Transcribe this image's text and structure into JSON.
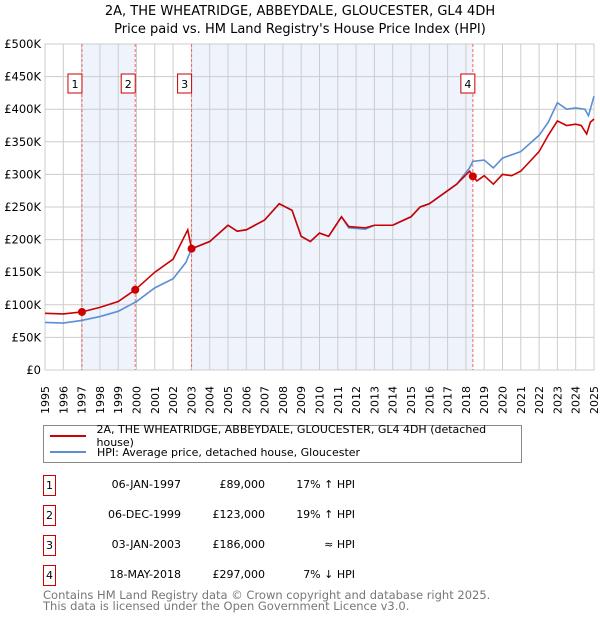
{
  "title_line1": "2A, THE WHEATRIDGE, ABBEYDALE, GLOUCESTER, GL4 4DH",
  "title_line2": "Price paid vs. HM Land Registry's House Price Index (HPI)",
  "legend": {
    "property": "2A, THE WHEATRIDGE, ABBEYDALE, GLOUCESTER, GL4 4DH (detached house)",
    "hpi": "HPI: Average price, detached house, Gloucester"
  },
  "colors": {
    "property": "#cc0000",
    "hpi": "#5b8fd4",
    "shade": "#eef3fc"
  },
  "sales": [
    {
      "n": "1",
      "date": "06-JAN-1997",
      "price": "£89,000",
      "hpi": "17% ↑ HPI",
      "x": 1997.02,
      "y": 89
    },
    {
      "n": "2",
      "date": "06-DEC-1999",
      "price": "£123,000",
      "hpi": "19% ↑ HPI",
      "x": 1999.93,
      "y": 123
    },
    {
      "n": "3",
      "date": "03-JAN-2003",
      "price": "£186,000",
      "hpi": "≈ HPI",
      "x": 2003.01,
      "y": 186
    },
    {
      "n": "4",
      "date": "18-MAY-2018",
      "price": "£297,000",
      "hpi": "7% ↓ HPI",
      "x": 2018.38,
      "y": 297
    }
  ],
  "footer1": "Contains HM Land Registry data © Crown copyright and database right 2025.",
  "footer2": "This data is licensed under the Open Government Licence v3.0.",
  "chart_data": {
    "type": "line",
    "xlim": [
      1995,
      2025
    ],
    "ylim": [
      0,
      500
    ],
    "yticks": [
      0,
      50,
      100,
      150,
      200,
      250,
      300,
      350,
      400,
      450,
      500
    ],
    "ytick_labels": [
      "£0",
      "£50K",
      "£100K",
      "£150K",
      "£200K",
      "£250K",
      "£300K",
      "£350K",
      "£400K",
      "£450K",
      "£500K"
    ],
    "xticks": [
      1995,
      1996,
      1997,
      1998,
      1999,
      2000,
      2001,
      2002,
      2003,
      2004,
      2005,
      2006,
      2007,
      2008,
      2009,
      2010,
      2011,
      2012,
      2013,
      2014,
      2015,
      2016,
      2017,
      2018,
      2019,
      2020,
      2021,
      2022,
      2023,
      2024,
      2025
    ],
    "shaded": [
      [
        1997.02,
        1999.93
      ],
      [
        2003.01,
        2018.38
      ]
    ],
    "series": [
      {
        "name": "property",
        "points": [
          [
            1995,
            87
          ],
          [
            1996,
            86
          ],
          [
            1997,
            89
          ],
          [
            1998,
            96
          ],
          [
            1999,
            105
          ],
          [
            1999.93,
            123
          ],
          [
            2001,
            150
          ],
          [
            2002,
            170
          ],
          [
            2002.8,
            215
          ],
          [
            2003.01,
            186
          ],
          [
            2004,
            197
          ],
          [
            2005,
            222
          ],
          [
            2005.5,
            213
          ],
          [
            2006,
            215
          ],
          [
            2007,
            230
          ],
          [
            2007.8,
            255
          ],
          [
            2008.5,
            245
          ],
          [
            2009,
            205
          ],
          [
            2009.5,
            197
          ],
          [
            2010,
            210
          ],
          [
            2010.5,
            205
          ],
          [
            2011.2,
            235
          ],
          [
            2011.6,
            220
          ],
          [
            2012.5,
            218
          ],
          [
            2013,
            222
          ],
          [
            2014,
            222
          ],
          [
            2015,
            235
          ],
          [
            2015.5,
            250
          ],
          [
            2016,
            255
          ],
          [
            2017,
            275
          ],
          [
            2017.5,
            285
          ],
          [
            2018.2,
            305
          ],
          [
            2018.38,
            297
          ],
          [
            2018.6,
            290
          ],
          [
            2019,
            298
          ],
          [
            2019.5,
            285
          ],
          [
            2020,
            300
          ],
          [
            2020.5,
            298
          ],
          [
            2021,
            305
          ],
          [
            2021.5,
            320
          ],
          [
            2022,
            335
          ],
          [
            2022.5,
            360
          ],
          [
            2023,
            382
          ],
          [
            2023.5,
            375
          ],
          [
            2024,
            377
          ],
          [
            2024.3,
            375
          ],
          [
            2024.6,
            362
          ],
          [
            2024.8,
            380
          ],
          [
            2025,
            385
          ]
        ]
      },
      {
        "name": "hpi",
        "points": [
          [
            1995,
            73
          ],
          [
            1996,
            72
          ],
          [
            1997,
            76
          ],
          [
            1998,
            82
          ],
          [
            1999,
            90
          ],
          [
            2000,
            105
          ],
          [
            2001,
            126
          ],
          [
            2002,
            140
          ],
          [
            2002.7,
            165
          ],
          [
            2003.01,
            186
          ],
          [
            2004,
            197
          ],
          [
            2005,
            222
          ],
          [
            2005.5,
            213
          ],
          [
            2006,
            215
          ],
          [
            2007,
            230
          ],
          [
            2007.8,
            255
          ],
          [
            2008.5,
            245
          ],
          [
            2009,
            205
          ],
          [
            2009.5,
            197
          ],
          [
            2010,
            210
          ],
          [
            2010.5,
            205
          ],
          [
            2011.2,
            235
          ],
          [
            2011.6,
            218
          ],
          [
            2012.5,
            216
          ],
          [
            2013,
            222
          ],
          [
            2014,
            222
          ],
          [
            2015,
            235
          ],
          [
            2015.5,
            250
          ],
          [
            2016,
            255
          ],
          [
            2017,
            275
          ],
          [
            2017.5,
            285
          ],
          [
            2018.2,
            310
          ],
          [
            2018.38,
            320
          ],
          [
            2019,
            322
          ],
          [
            2019.5,
            310
          ],
          [
            2020,
            325
          ],
          [
            2021,
            335
          ],
          [
            2022,
            360
          ],
          [
            2022.5,
            380
          ],
          [
            2023,
            410
          ],
          [
            2023.5,
            400
          ],
          [
            2024,
            402
          ],
          [
            2024.5,
            400
          ],
          [
            2024.7,
            390
          ],
          [
            2025,
            420
          ]
        ]
      }
    ]
  }
}
